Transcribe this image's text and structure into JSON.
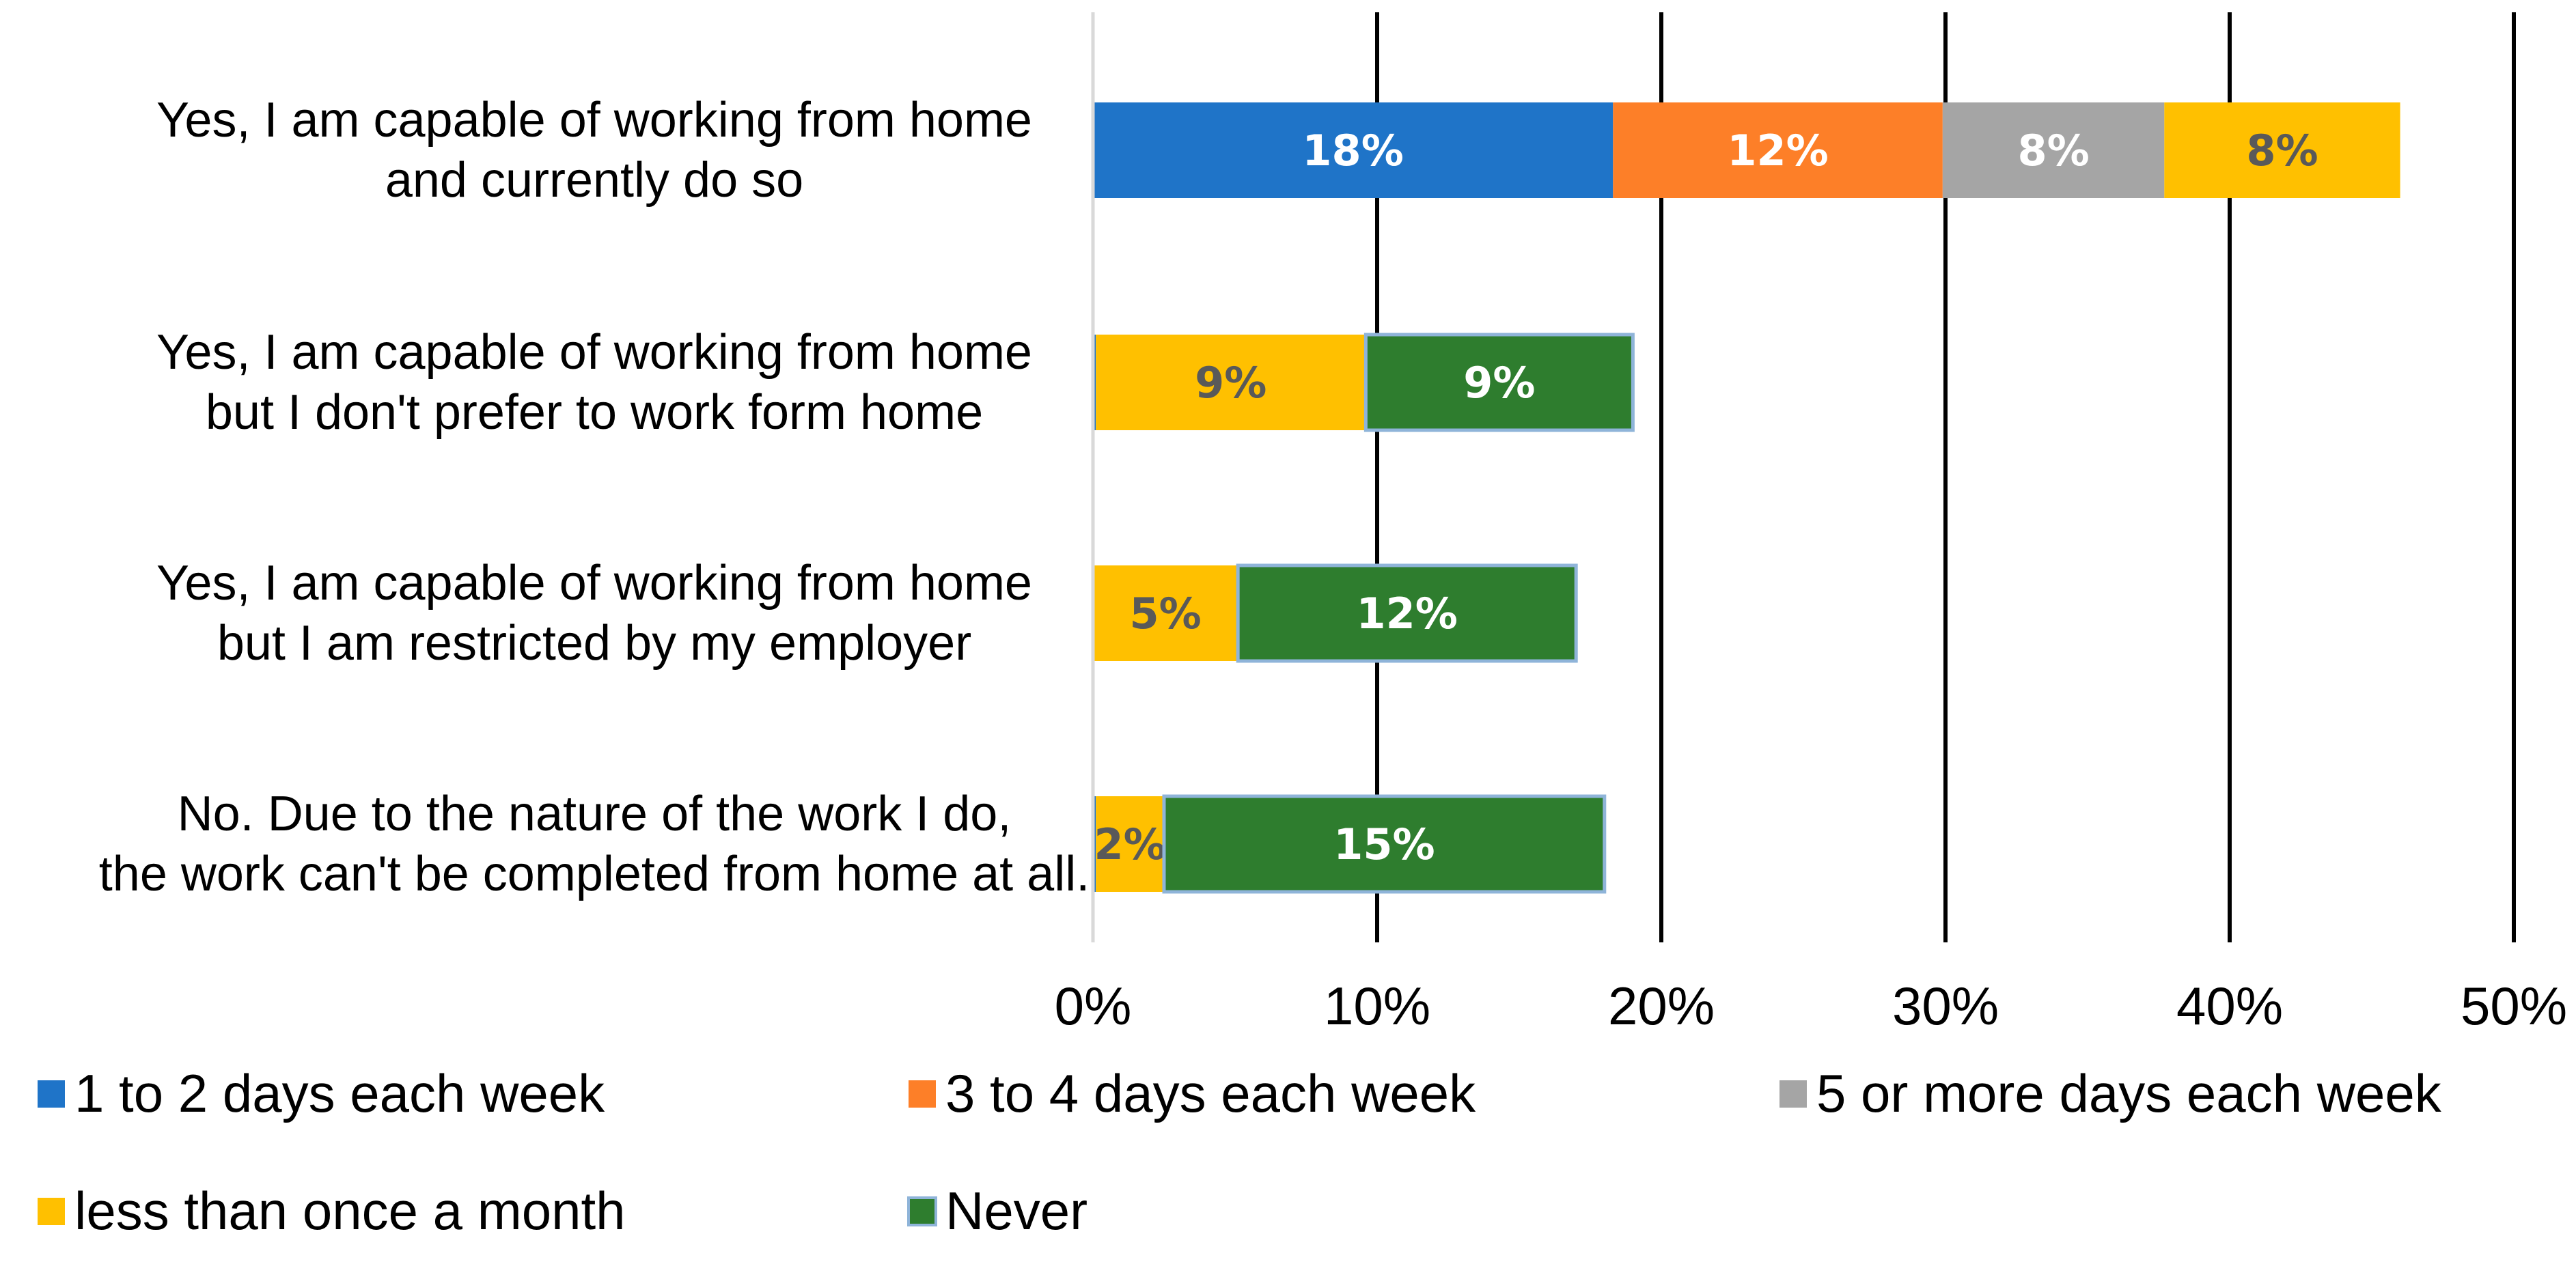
{
  "chart_data": {
    "type": "bar",
    "orientation": "horizontal",
    "stacked": true,
    "categories": [
      [
        "Yes, I am capable of working from home",
        "and currently do so"
      ],
      [
        "Yes, I am capable of working from home",
        "but I don't prefer to work form home"
      ],
      [
        "Yes, I am capable of working from home",
        "but I am restricted by my employer"
      ],
      [
        "No. Due to the nature of the work I do,",
        "the work can't be completed from home at all."
      ]
    ],
    "series": [
      {
        "name": "1 to 2 days each week",
        "color": "#1f74c8",
        "values": [
          18.3,
          0.1,
          0,
          0.1
        ],
        "labels": [
          "18%",
          "",
          "",
          ""
        ],
        "label_color": "#ffffff"
      },
      {
        "name": "3 to 4 days each week",
        "color": "#fd7f28",
        "values": [
          11.6,
          0,
          0,
          0
        ],
        "labels": [
          "12%",
          "",
          "",
          ""
        ],
        "label_color": "#ffffff"
      },
      {
        "name": "5 or more days each week",
        "color": "#a5a5a5",
        "values": [
          7.8,
          0,
          0,
          0
        ],
        "labels": [
          "8%",
          "",
          "",
          ""
        ],
        "label_color": "#ffffff"
      },
      {
        "name": "less than once a month",
        "color": "#ffc000",
        "values": [
          8.3,
          9.5,
          5.1,
          2.4
        ],
        "labels": [
          "8%",
          "9%",
          "5%",
          "2%"
        ],
        "label_color": "#595959"
      },
      {
        "name": "Never",
        "color": "#2e7d2e",
        "values": [
          0,
          9.4,
          11.9,
          15.5
        ],
        "labels": [
          "",
          "9%",
          "12%",
          "15%"
        ],
        "label_color": "#ffffff",
        "outline": "#8fb4d9"
      }
    ],
    "xlim": [
      0,
      50
    ],
    "x_ticks": [
      0,
      10,
      20,
      30,
      40,
      50
    ],
    "x_tick_labels": [
      "0%",
      "10%",
      "20%",
      "30%",
      "40%",
      "50%"
    ],
    "grid": "vertical major",
    "legend_position": "bottom",
    "title": "",
    "xlabel": "",
    "ylabel": ""
  }
}
